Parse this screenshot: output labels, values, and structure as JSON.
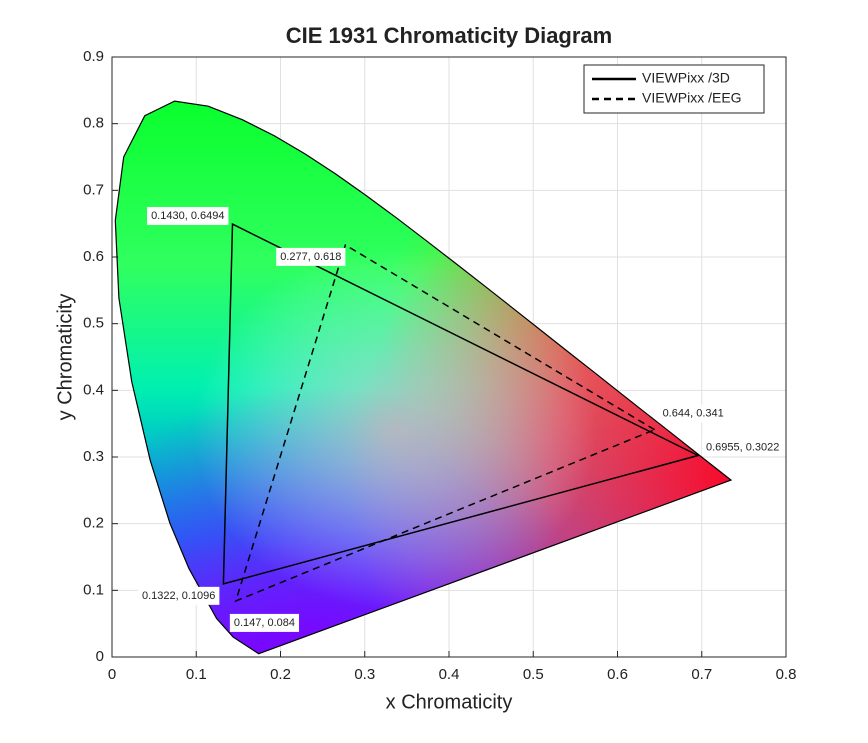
{
  "chart_data": {
    "type": "line",
    "title": "CIE 1931 Chromaticity Diagram",
    "x_label": "x Chromaticity",
    "y_label": "y Chromaticity",
    "xlim": [
      0,
      0.8
    ],
    "ylim": [
      0,
      0.9
    ],
    "xticks": [
      0,
      0.1,
      0.2,
      0.3,
      0.4,
      0.5,
      0.6,
      0.7,
      0.8
    ],
    "yticks": [
      0,
      0.1,
      0.2,
      0.3,
      0.4,
      0.5,
      0.6,
      0.7,
      0.8,
      0.9
    ],
    "grid": true,
    "legend": "upper right",
    "spectral_locus": {
      "x": [
        0.1741,
        0.144,
        0.1241,
        0.0913,
        0.0687,
        0.0454,
        0.0235,
        0.0082,
        0.0039,
        0.0139,
        0.0389,
        0.0743,
        0.1142,
        0.1547,
        0.1929,
        0.2296,
        0.2658,
        0.3016,
        0.3373,
        0.3731,
        0.4087,
        0.4441,
        0.4788,
        0.5125,
        0.5448,
        0.5752,
        0.6029,
        0.627,
        0.6482,
        0.6658,
        0.6915,
        0.7347
      ],
      "y": [
        0.005,
        0.0297,
        0.0578,
        0.1327,
        0.2007,
        0.295,
        0.4127,
        0.5384,
        0.6548,
        0.7502,
        0.812,
        0.8338,
        0.8262,
        0.8059,
        0.7816,
        0.7543,
        0.7243,
        0.6923,
        0.6589,
        0.6245,
        0.5896,
        0.5547,
        0.5202,
        0.4866,
        0.4544,
        0.4242,
        0.3965,
        0.3725,
        0.3514,
        0.334,
        0.3083,
        0.2653
      ]
    },
    "series": [
      {
        "name": "VIEWPixx /3D",
        "color": "#000000",
        "dash": "solid",
        "x": [
          0.6955,
          0.143,
          0.1322
        ],
        "y": [
          0.3022,
          0.6494,
          0.1096
        ],
        "value_labels": [
          "0.6955, 0.3022",
          "0.1430, 0.6494",
          "0.1322, 0.1096"
        ]
      },
      {
        "name": "VIEWPixx /EEG",
        "color": "#000000",
        "dash": "dashed",
        "x": [
          0.644,
          0.277,
          0.147
        ],
        "y": [
          0.341,
          0.618,
          0.084
        ],
        "value_labels": [
          "0.644, 0.341",
          "0.277, 0.618",
          "0.147, 0.084"
        ]
      }
    ]
  }
}
